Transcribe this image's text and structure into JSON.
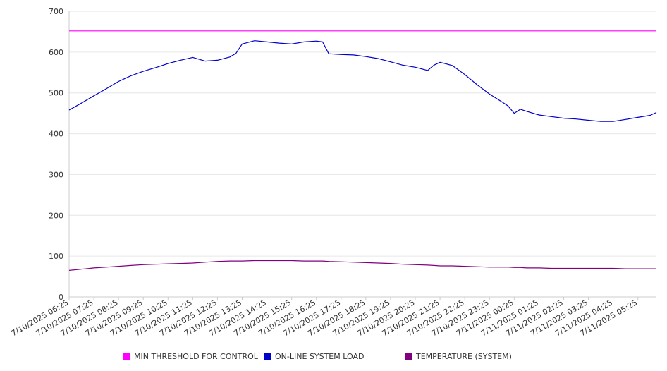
{
  "chart_data": {
    "type": "line",
    "title": "",
    "xlabel": "",
    "ylabel": "",
    "ylim": [
      0,
      700
    ],
    "yticks": [
      0,
      100,
      200,
      300,
      400,
      500,
      600,
      700
    ],
    "grid": true,
    "legend_position": "bottom",
    "x_tick_labels": [
      "7/10/2025 06:25",
      "7/10/2025 07:25",
      "7/10/2025 08:25",
      "7/10/2025 09:25",
      "7/10/2025 10:25",
      "7/10/2025 11:25",
      "7/10/2025 12:25",
      "7/10/2025 13:25",
      "7/10/2025 14:25",
      "7/10/2025 15:25",
      "7/10/2025 16:25",
      "7/10/2025 17:25",
      "7/10/2025 18:25",
      "7/10/2025 19:25",
      "7/10/2025 20:25",
      "7/10/2025 21:25",
      "7/10/2025 22:25",
      "7/10/2025 23:25",
      "7/11/2025 00:25",
      "7/11/2025 01:25",
      "7/11/2025 02:25",
      "7/11/2025 03:25",
      "7/11/2025 04:25",
      "7/11/2025 05:25"
    ],
    "x": [
      "7/10/2025 06:25",
      "7/10/2025 06:55",
      "7/10/2025 07:25",
      "7/10/2025 07:55",
      "7/10/2025 08:25",
      "7/10/2025 08:55",
      "7/10/2025 09:25",
      "7/10/2025 09:55",
      "7/10/2025 10:25",
      "7/10/2025 10:55",
      "7/10/2025 11:25",
      "7/10/2025 11:55",
      "7/10/2025 12:25",
      "7/10/2025 12:55",
      "7/10/2025 13:10",
      "7/10/2025 13:25",
      "7/10/2025 13:55",
      "7/10/2025 14:25",
      "7/10/2025 14:55",
      "7/10/2025 15:25",
      "7/10/2025 15:55",
      "7/10/2025 16:25",
      "7/10/2025 16:40",
      "7/10/2025 16:55",
      "7/10/2025 17:25",
      "7/10/2025 17:55",
      "7/10/2025 18:25",
      "7/10/2025 18:55",
      "7/10/2025 19:25",
      "7/10/2025 19:55",
      "7/10/2025 20:25",
      "7/10/2025 20:55",
      "7/10/2025 21:10",
      "7/10/2025 21:25",
      "7/10/2025 21:55",
      "7/10/2025 22:25",
      "7/10/2025 22:55",
      "7/10/2025 23:25",
      "7/10/2025 23:55",
      "7/11/2025 00:10",
      "7/11/2025 00:25",
      "7/11/2025 00:40",
      "7/11/2025 00:55",
      "7/11/2025 01:25",
      "7/11/2025 01:55",
      "7/11/2025 02:25",
      "7/11/2025 02:55",
      "7/11/2025 03:25",
      "7/11/2025 03:55",
      "7/11/2025 04:25",
      "7/11/2025 04:55",
      "7/11/2025 05:25",
      "7/11/2025 05:55",
      "7/11/2025 06:10"
    ],
    "series": [
      {
        "name": "MIN THRESHOLD FOR CONTROL",
        "color": "#ff00ff",
        "values": [
          652,
          652,
          652,
          652,
          652,
          652,
          652,
          652,
          652,
          652,
          652,
          652,
          652,
          652,
          652,
          652,
          652,
          652,
          652,
          652,
          652,
          652,
          652,
          652,
          652,
          652,
          652,
          652,
          652,
          652,
          652,
          652,
          652,
          652,
          652,
          652,
          652,
          652,
          652,
          652,
          652,
          652,
          652,
          652,
          652,
          652,
          652,
          652,
          652,
          652,
          652,
          652,
          652,
          652
        ]
      },
      {
        "name": "ON-LINE SYSTEM LOAD",
        "color": "#0000cc",
        "values": [
          458,
          475,
          493,
          510,
          528,
          542,
          553,
          562,
          572,
          580,
          587,
          578,
          580,
          588,
          597,
          620,
          628,
          625,
          622,
          620,
          625,
          627,
          625,
          596,
          594,
          593,
          589,
          584,
          576,
          568,
          563,
          555,
          568,
          575,
          567,
          545,
          520,
          497,
          478,
          468,
          450,
          460,
          455,
          446,
          442,
          438,
          436,
          433,
          430,
          430,
          435,
          440,
          445,
          452
        ]
      },
      {
        "name": "TEMPERATURE (SYSTEM)",
        "color": "#800080",
        "values": [
          65,
          68,
          71,
          73,
          75,
          77,
          79,
          80,
          81,
          82,
          83,
          85,
          87,
          88,
          88,
          88,
          89,
          89,
          89,
          89,
          88,
          88,
          88,
          87,
          86,
          85,
          84,
          83,
          82,
          80,
          79,
          78,
          77,
          76,
          76,
          75,
          74,
          73,
          73,
          73,
          72,
          72,
          71,
          71,
          70,
          70,
          70,
          70,
          70,
          70,
          69,
          69,
          69,
          69
        ]
      }
    ]
  }
}
